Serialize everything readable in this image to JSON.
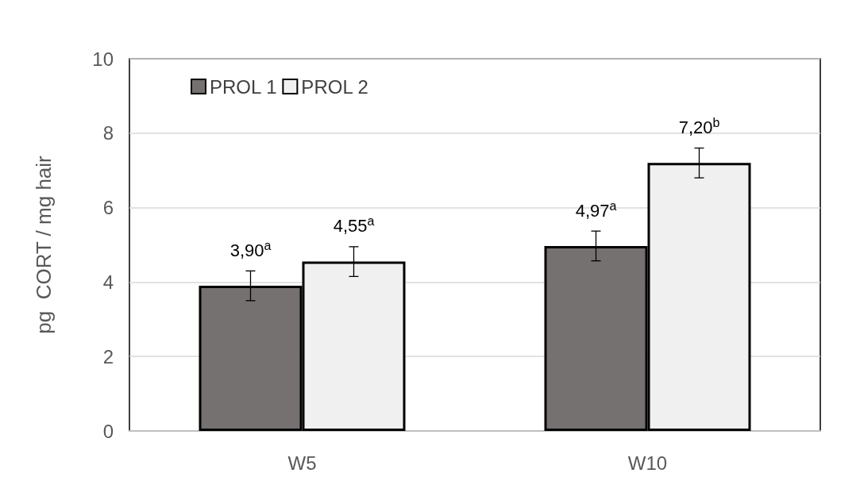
{
  "chart_data": {
    "type": "bar",
    "ylabel": "pg  CORT / mg hair",
    "categories": [
      "W5",
      "W10"
    ],
    "series": [
      {
        "name": "PROL 1",
        "color": "#767171",
        "values": [
          3.9,
          4.97
        ],
        "errors": [
          0.4,
          0.4
        ],
        "value_labels": [
          "3,90$^{a}$",
          "4,97$^{a}$"
        ]
      },
      {
        "name": "PROL 2",
        "color": "#f0f0f0",
        "values": [
          4.55,
          7.2
        ],
        "errors": [
          0.4,
          0.4
        ],
        "value_labels": [
          "4,55$^{a}$",
          "7,20$^{b}$"
        ]
      }
    ],
    "ylim": [
      0,
      10
    ],
    "yticks": [
      0,
      2,
      4,
      6,
      8,
      10
    ],
    "grid": "y",
    "legend": "top left"
  }
}
